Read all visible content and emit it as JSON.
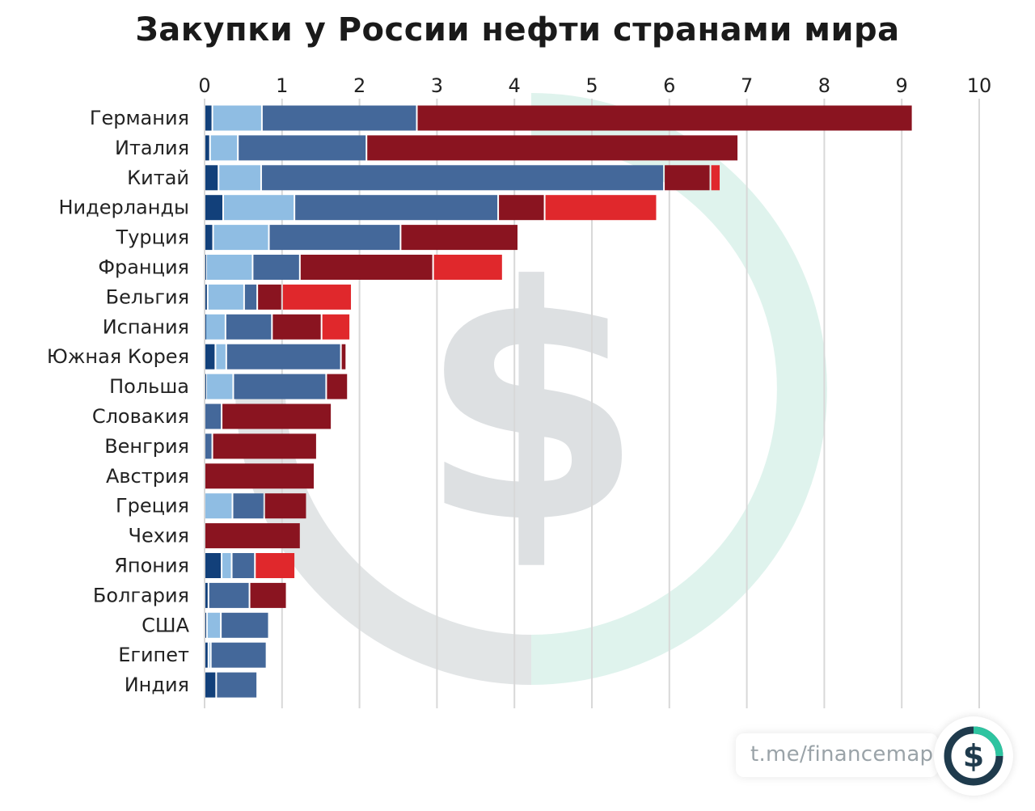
{
  "title": "Закупки у России нефти странами мира",
  "watermark": {
    "color_gray": "#cfd3d6",
    "color_mint": "#bfe8dc",
    "icon": "dollar-sign-icon"
  },
  "source_link": "t.me/financemap",
  "logo": {
    "icon": "dollar-circle-logo",
    "colors": [
      "#1f3b4d",
      "#2ec4a0"
    ]
  },
  "chart_data": {
    "type": "bar",
    "orientation": "horizontal",
    "stacked": true,
    "xlim": [
      0,
      10
    ],
    "xticks": [
      "0",
      "1",
      "2",
      "3",
      "4",
      "5",
      "6",
      "7",
      "8",
      "9",
      "10"
    ],
    "grid": true,
    "segment_colors": [
      "#12407a",
      "#8fbde3",
      "#44689a",
      "#8a1420",
      "#e0282c"
    ],
    "categories": [
      "Германия",
      "Италия",
      "Китай",
      "Нидерланды",
      "Турция",
      "Франция",
      "Бельгия",
      "Испания",
      "Южная Корея",
      "Польша",
      "Словакия",
      "Венгрия",
      "Австрия",
      "Греция",
      "Чехия",
      "Япония",
      "Болгария",
      "США",
      "Египет",
      "Индия"
    ],
    "series": [
      {
        "values": [
          0.1,
          0.07,
          0.18,
          0.24,
          0.11,
          0.02,
          0.04,
          0.01,
          0.14,
          0.02,
          0.0,
          0.0,
          0.0,
          0.0,
          0.0,
          0.22,
          0.05,
          0.03,
          0.05,
          0.15
        ]
      },
      {
        "values": [
          0.64,
          0.36,
          0.55,
          0.92,
          0.72,
          0.6,
          0.47,
          0.26,
          0.14,
          0.35,
          0.0,
          0.0,
          0.0,
          0.36,
          0.0,
          0.13,
          0.0,
          0.18,
          0.03,
          0.0
        ]
      },
      {
        "values": [
          2.0,
          1.66,
          5.2,
          2.63,
          1.7,
          0.61,
          0.17,
          0.6,
          1.48,
          1.2,
          0.22,
          0.1,
          0.0,
          0.41,
          0.0,
          0.3,
          0.53,
          0.62,
          0.72,
          0.53
        ]
      },
      {
        "values": [
          6.4,
          4.8,
          0.6,
          0.6,
          1.52,
          1.72,
          0.32,
          0.64,
          0.07,
          0.28,
          1.42,
          1.35,
          1.42,
          0.55,
          1.24,
          0.0,
          0.48,
          0.0,
          0.0,
          0.0
        ]
      },
      {
        "values": [
          0.0,
          0.0,
          0.13,
          1.45,
          0.0,
          0.9,
          0.9,
          0.37,
          0.0,
          0.0,
          0.0,
          0.0,
          0.0,
          0.0,
          0.0,
          0.52,
          0.0,
          0.0,
          0.0,
          0.0
        ]
      }
    ]
  }
}
